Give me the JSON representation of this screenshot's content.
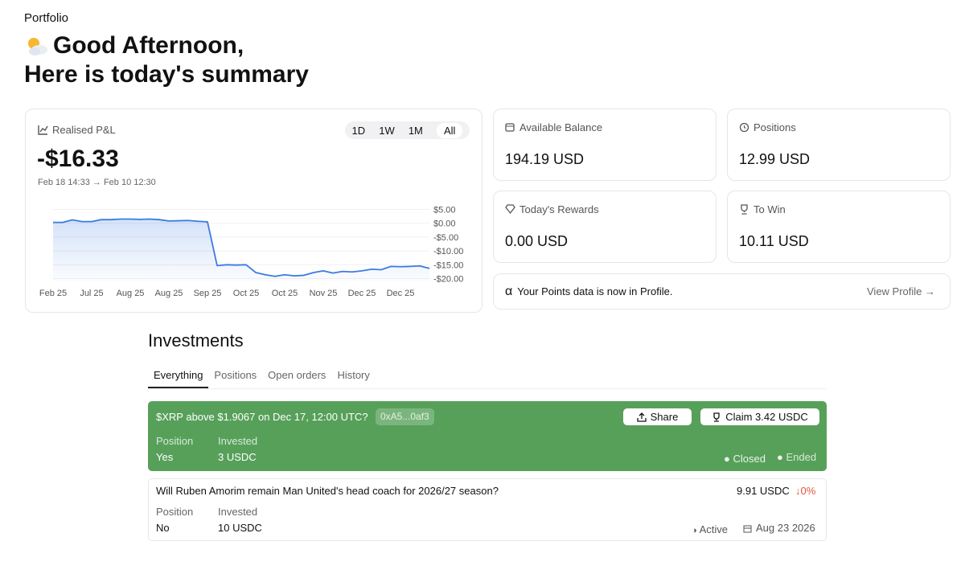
{
  "header": {
    "breadcrumb": "Portfolio",
    "greeting": "Good Afternoon,",
    "subtitle": "Here is today's summary"
  },
  "pnl": {
    "label": "Realised P&L",
    "value": "-$16.33",
    "range": "Feb 18 14:33 → Feb 10 12:30",
    "periods": [
      "1D",
      "1W",
      "1M",
      "All"
    ]
  },
  "chart_data": {
    "type": "line",
    "color": "#3b7be0",
    "grid": true,
    "categories": [
      "Feb 25",
      null,
      null,
      null,
      "Jul 25",
      null,
      null,
      null,
      "Aug 25",
      null,
      null,
      null,
      "Aug 25",
      null,
      null,
      null,
      "Sep 25",
      null,
      null,
      null,
      "Oct 25",
      null,
      null,
      null,
      "Oct 25",
      null,
      null,
      null,
      "Nov 25",
      null,
      null,
      null,
      "Dec 25",
      null,
      null,
      null,
      "Dec 25",
      null,
      null,
      null
    ],
    "values": [
      0.3,
      0.3,
      1.2,
      0.6,
      0.6,
      1.3,
      1.3,
      1.5,
      1.5,
      1.4,
      1.5,
      1.3,
      0.8,
      0.9,
      1.0,
      0.7,
      0.5,
      -15.3,
      -15.0,
      -15.1,
      -15.0,
      -17.8,
      -18.6,
      -19.2,
      -18.6,
      -19.0,
      -18.8,
      -17.8,
      -17.2,
      -18.0,
      -17.4,
      -17.6,
      -17.2,
      -16.6,
      -16.8,
      -15.6,
      -15.7,
      -15.6,
      -15.4,
      -16.33
    ],
    "ylim": [
      -21,
      6
    ],
    "yticks": [
      {
        "value": 5,
        "label": "$5.00"
      },
      {
        "value": 0,
        "label": "$0.00"
      },
      {
        "value": -5,
        "label": "-$5.00"
      },
      {
        "value": -10,
        "label": "-$10.00"
      },
      {
        "value": -15,
        "label": "-$15.00"
      },
      {
        "value": -20,
        "label": "-$20.00"
      }
    ]
  },
  "stats": [
    {
      "label": "Available Balance",
      "value": "194.19 USD"
    },
    {
      "label": "Positions",
      "value": "12.99 USD"
    },
    {
      "label": "Today's Rewards",
      "value": "0.00 USD"
    },
    {
      "label": "To Win",
      "value": "10.11 USD"
    }
  ],
  "notice": {
    "text": "Your Points data is now in Profile.",
    "link": "View Profile →"
  },
  "investments": {
    "title": "Investments",
    "tabs": [
      "Everything",
      "Positions",
      "Open orders",
      "History"
    ],
    "items": [
      {
        "title": "$XRP above $1.9067 on Dec 17, 12:00 UTC?",
        "tag": "0xA5...0af3",
        "share": "Share",
        "claim": "Claim 3.42 USDC",
        "position_label": "Position",
        "position": "Yes",
        "invested_label": "Invested",
        "invested": "3 USDC",
        "status": "Closed",
        "status2": "Ended"
      },
      {
        "title": "Will Ruben Amorim remain Man United's head coach for 2026/27 season?",
        "value": "9.91 USDC",
        "change": "↓0%",
        "position_label": "Position",
        "position": "No",
        "invested_label": "Invested",
        "invested": "10 USDC",
        "status": "Active",
        "date": "Aug 23 2026"
      }
    ]
  }
}
